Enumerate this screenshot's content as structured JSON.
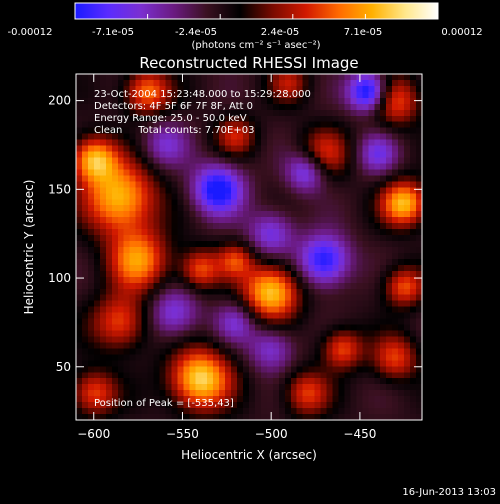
{
  "colors": {
    "background": "#000000",
    "foreground": "#ffffff",
    "colormap_stops": [
      "#1a1aff",
      "#5a2bff",
      "#7b2fd0",
      "#6a1a80",
      "#3a1020",
      "#000000",
      "#7a0a00",
      "#d11900",
      "#ff6a00",
      "#ffb000",
      "#ffe78a",
      "#ffffff"
    ]
  },
  "colorbar": {
    "ticks": [
      "-0.00012",
      "-7.1e-05",
      "-2.4e-05",
      "2.4e-05",
      "7.1e-05",
      "0.00012"
    ],
    "units": "(photons cm⁻² s⁻¹ asec⁻²)"
  },
  "title": "Reconstructed RHESSI Image",
  "info": {
    "line1": "23-Oct-2004 15:23:48.000 to 15:29:28.000",
    "line2": "Detectors: 4F 5F 6F 7F 8F, Att 0",
    "line3": "Energy Range: 25.0 - 50.0 keV",
    "line4": "Clean     Total counts: 7.70E+03"
  },
  "peak_text": "Position of Peak = [-535,43]",
  "footer_date": "16-Jun-2013 13:03",
  "chart_data": {
    "type": "heatmap",
    "title": "Reconstructed RHESSI Image",
    "xlabel": "Heliocentric X (arcsec)",
    "ylabel": "Heliocentric Y (arcsec)",
    "xlim": [
      -610,
      -415
    ],
    "ylim": [
      20,
      215
    ],
    "x_ticks": [
      -600,
      -550,
      -500,
      -450
    ],
    "y_ticks": [
      50,
      100,
      150,
      200
    ],
    "value_range": [
      -0.00012,
      0.00012
    ],
    "peak": [
      -535,
      43
    ],
    "blobs": [
      {
        "x": -540,
        "y": 43,
        "v": 1.0,
        "s": 12
      },
      {
        "x": -585,
        "y": 145,
        "v": 0.9,
        "s": 14
      },
      {
        "x": -575,
        "y": 110,
        "v": 0.75,
        "s": 12
      },
      {
        "x": -600,
        "y": 167,
        "v": 0.85,
        "s": 9
      },
      {
        "x": -585,
        "y": 75,
        "v": 0.6,
        "s": 11
      },
      {
        "x": -600,
        "y": 35,
        "v": 0.6,
        "s": 9
      },
      {
        "x": -500,
        "y": 92,
        "v": 0.95,
        "s": 11
      },
      {
        "x": -425,
        "y": 142,
        "v": 0.9,
        "s": 9
      },
      {
        "x": -430,
        "y": 200,
        "v": 0.6,
        "s": 10
      },
      {
        "x": -470,
        "y": 170,
        "v": 0.5,
        "s": 10
      },
      {
        "x": -540,
        "y": 105,
        "v": 0.6,
        "s": 8
      },
      {
        "x": -520,
        "y": 110,
        "v": 0.5,
        "s": 7
      },
      {
        "x": -460,
        "y": 60,
        "v": 0.6,
        "s": 8
      },
      {
        "x": -430,
        "y": 55,
        "v": 0.55,
        "s": 9
      },
      {
        "x": -425,
        "y": 95,
        "v": 0.6,
        "s": 8
      },
      {
        "x": -480,
        "y": 35,
        "v": 0.55,
        "s": 9
      },
      {
        "x": -570,
        "y": 205,
        "v": 0.7,
        "s": 9
      },
      {
        "x": -520,
        "y": 180,
        "v": 0.45,
        "s": 8
      },
      {
        "x": -490,
        "y": 210,
        "v": 0.4,
        "s": 8
      },
      {
        "x": -530,
        "y": 150,
        "v": -0.85,
        "s": 10
      },
      {
        "x": -470,
        "y": 110,
        "v": -0.8,
        "s": 10
      },
      {
        "x": -445,
        "y": 205,
        "v": -0.95,
        "s": 8
      },
      {
        "x": -480,
        "y": 160,
        "v": -0.6,
        "s": 8
      },
      {
        "x": -500,
        "y": 125,
        "v": -0.5,
        "s": 9
      },
      {
        "x": -555,
        "y": 80,
        "v": -0.5,
        "s": 10
      },
      {
        "x": -500,
        "y": 60,
        "v": -0.45,
        "s": 9
      },
      {
        "x": -560,
        "y": 175,
        "v": -0.4,
        "s": 9
      },
      {
        "x": -440,
        "y": 170,
        "v": -0.45,
        "s": 8
      },
      {
        "x": -520,
        "y": 75,
        "v": -0.4,
        "s": 8
      }
    ]
  }
}
